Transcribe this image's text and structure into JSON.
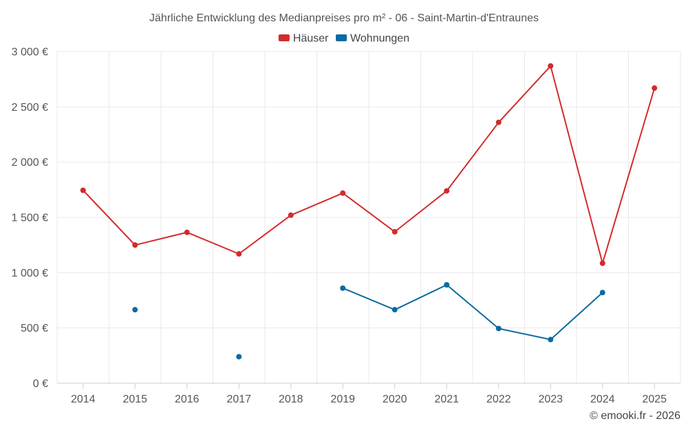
{
  "chart_data": {
    "type": "line",
    "title": "Jährliche Entwicklung des Medianpreises pro m² - 06 - Saint-Martin-d'Entraunes",
    "categories": [
      "2014",
      "2015",
      "2016",
      "2017",
      "2018",
      "2019",
      "2020",
      "2021",
      "2022",
      "2023",
      "2024",
      "2025"
    ],
    "ylim": [
      0,
      3000
    ],
    "yticks": [
      0,
      500,
      1000,
      1500,
      2000,
      2500,
      3000
    ],
    "ytick_labels": [
      "0 €",
      "500 €",
      "1 000 €",
      "1 500 €",
      "2 000 €",
      "2 500 €",
      "3 000 €"
    ],
    "grid": true,
    "legend_position": "top-center",
    "series": [
      {
        "name": "Häuser",
        "color": "#d42a2a",
        "values": [
          1745,
          1250,
          1365,
          1170,
          1520,
          1720,
          1370,
          1740,
          2360,
          2870,
          1085,
          2670
        ]
      },
      {
        "name": "Wohnungen",
        "color": "#0a6aa1",
        "values": [
          null,
          665,
          null,
          240,
          null,
          860,
          665,
          890,
          495,
          395,
          820,
          null
        ]
      }
    ]
  },
  "credit": "© emooki.fr - 2026"
}
